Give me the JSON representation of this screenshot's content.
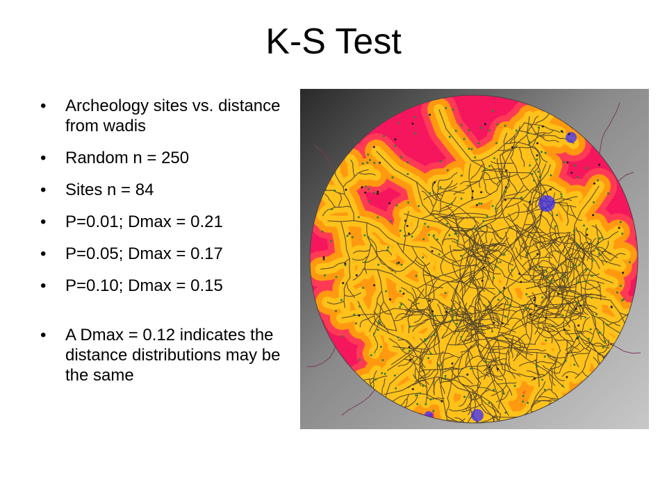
{
  "slide": {
    "title": "K-S Test",
    "bullet_symbol": "•",
    "bullets": [
      "Archeology sites vs. distance from wadis",
      "Random n = 250",
      "Sites n = 84",
      "P=0.01; Dmax = 0.21",
      "P=0.05; Dmax = 0.17",
      "P=0.10; Dmax = 0.15",
      "A Dmax = 0.12 indicates the distance distributions may be the same"
    ]
  },
  "map": {
    "colors": {
      "far": "#f5165e",
      "mid": "#ff3a55",
      "near": "#ff9a10",
      "closest": "#ffc21a",
      "wadi": "#5a4a2a",
      "low_spot": "#3a2cff",
      "site_point": "#1a1a1a",
      "random_point": "#2e7d32",
      "terrain_dark": "#2a2a2a",
      "terrain_light": "#c8c8c8",
      "outer_stream": "#7a3a5e"
    },
    "random_point_count": 250,
    "site_point_count": 84
  }
}
